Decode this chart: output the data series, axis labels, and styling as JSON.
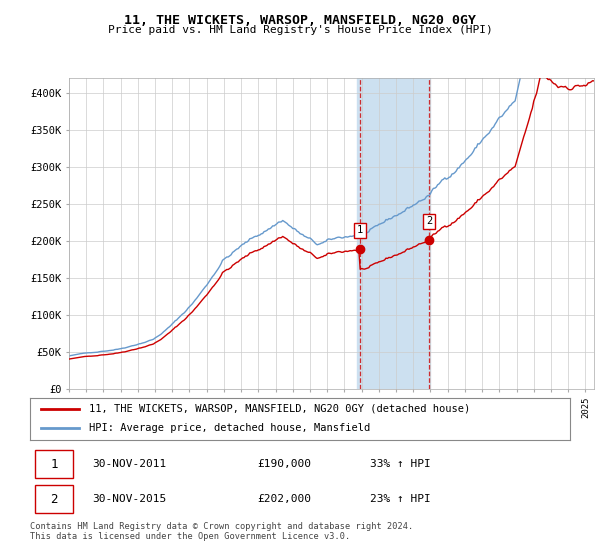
{
  "title": "11, THE WICKETS, WARSOP, MANSFIELD, NG20 0GY",
  "subtitle": "Price paid vs. HM Land Registry's House Price Index (HPI)",
  "ylabel_ticks": [
    "£0",
    "£50K",
    "£100K",
    "£150K",
    "£200K",
    "£250K",
    "£300K",
    "£350K",
    "£400K"
  ],
  "ylim": [
    0,
    420000
  ],
  "xlim_start": 1995.5,
  "xlim_end": 2025.5,
  "highlight_start": 2011.75,
  "highlight_end": 2016.0,
  "sale1_x": 2011.917,
  "sale1_y": 190000,
  "sale2_x": 2015.917,
  "sale2_y": 202000,
  "legend_label1": "11, THE WICKETS, WARSOP, MANSFIELD, NG20 0GY (detached house)",
  "legend_label2": "HPI: Average price, detached house, Mansfield",
  "table_row1": [
    "1",
    "30-NOV-2011",
    "£190,000",
    "33% ↑ HPI"
  ],
  "table_row2": [
    "2",
    "30-NOV-2015",
    "£202,000",
    "23% ↑ HPI"
  ],
  "footer": "Contains HM Land Registry data © Crown copyright and database right 2024.\nThis data is licensed under the Open Government Licence v3.0.",
  "line1_color": "#cc0000",
  "line2_color": "#6699cc",
  "highlight_color": "#cce0f0",
  "marker_color": "#cc0000",
  "grid_color": "#cccccc"
}
